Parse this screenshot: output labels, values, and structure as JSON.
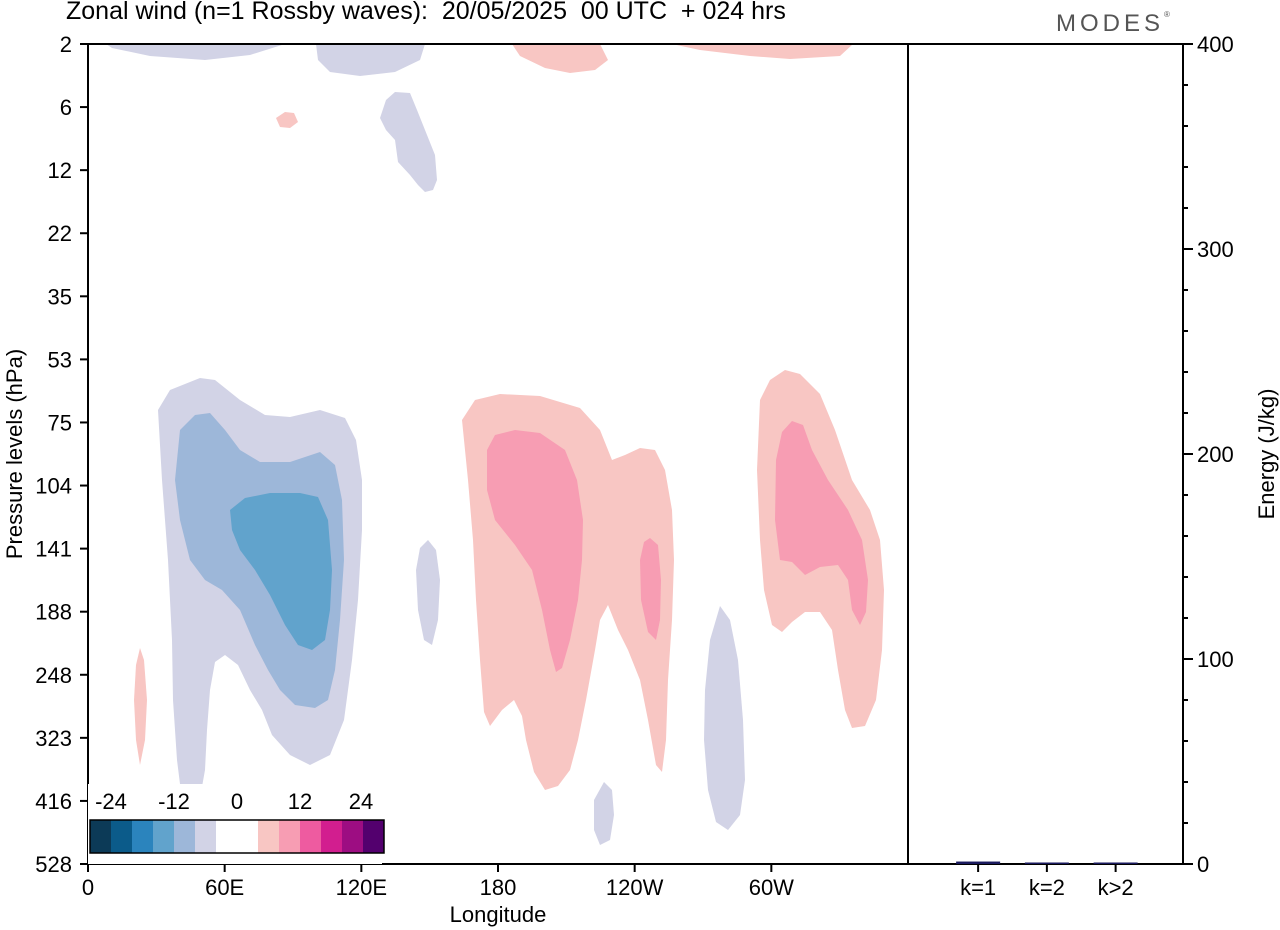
{
  "title": "Zonal wind (n=1 Rossby waves):  20/05/2025  00 UTC  + 024 hrs",
  "brand": "MODES",
  "brand_mark": "®",
  "colors": {
    "neg": [
      "#0c3a57",
      "#0b5b8a",
      "#2b84bd",
      "#61a3cc",
      "#9db7d9",
      "#d2d3e6"
    ],
    "zero": "#ffffff",
    "pos": [
      "#f8c6c3",
      "#f79db3",
      "#ee5ba0",
      "#d21e8f",
      "#9d0d82",
      "#53006e"
    ]
  },
  "chart_data": [
    {
      "type": "heatmap",
      "xlabel": "Longitude",
      "ylabel": "Pressure levels (hPa)",
      "x_ticks": [
        "0",
        "60E",
        "120E",
        "180",
        "120W",
        "60W"
      ],
      "x_tick_degrees": [
        0,
        60,
        120,
        180,
        240,
        300
      ],
      "xlim": [
        0,
        360
      ],
      "y_ticks": [
        "2",
        "6",
        "12",
        "22",
        "35",
        "53",
        "75",
        "104",
        "141",
        "188",
        "248",
        "323",
        "416",
        "528"
      ],
      "colorbar": {
        "labels": [
          "-24",
          "-12",
          "0",
          "12",
          "24"
        ],
        "levels": [
          -24,
          -12,
          0,
          12,
          24
        ]
      },
      "regions": [
        {
          "sign": "neg",
          "level": 1,
          "lon": [
            6,
            104
          ],
          "level_range": [
            "2",
            "2"
          ]
        },
        {
          "sign": "neg",
          "level": 1,
          "lon": [
            100,
            142
          ],
          "level_range": [
            "2",
            "12"
          ]
        },
        {
          "sign": "neg",
          "level": 1,
          "lon": [
            30,
            120
          ],
          "level_range": [
            "53",
            "416"
          ]
        },
        {
          "sign": "neg",
          "level": 2,
          "lon": [
            38,
            108
          ],
          "level_range": [
            "75",
            "323"
          ]
        },
        {
          "sign": "neg",
          "level": 3,
          "lon": [
            60,
            105
          ],
          "level_range": [
            "104",
            "248"
          ]
        },
        {
          "sign": "neg",
          "level": 1,
          "lon": [
            143,
            153
          ],
          "level_range": [
            "141",
            "248"
          ]
        },
        {
          "sign": "neg",
          "level": 1,
          "lon": [
            262,
            278
          ],
          "level_range": [
            "188",
            "416"
          ]
        },
        {
          "sign": "neg",
          "level": 1,
          "lon": [
            222,
            231
          ],
          "level_range": [
            "416",
            "528"
          ]
        },
        {
          "sign": "pos",
          "level": 1,
          "lon": [
            17,
            21
          ],
          "level_range": [
            "248",
            "323"
          ]
        },
        {
          "sign": "pos",
          "level": 1,
          "lon": [
            82,
            90
          ],
          "level_range": [
            "6",
            "12"
          ]
        },
        {
          "sign": "pos",
          "level": 1,
          "lon": [
            190,
            226
          ],
          "level_range": [
            "2",
            "2"
          ]
        },
        {
          "sign": "pos",
          "level": 1,
          "lon": [
            260,
            335
          ],
          "level_range": [
            "2",
            "2"
          ]
        },
        {
          "sign": "pos",
          "level": 1,
          "lon": [
            163,
            255
          ],
          "level_range": [
            "75",
            "416"
          ]
        },
        {
          "sign": "pos",
          "level": 2,
          "lon": [
            175,
            216
          ],
          "level_range": [
            "75",
            "248"
          ]
        },
        {
          "sign": "pos",
          "level": 2,
          "lon": [
            245,
            252
          ],
          "level_range": [
            "141",
            "188"
          ]
        },
        {
          "sign": "pos",
          "level": 1,
          "lon": [
            292,
            350
          ],
          "level_range": [
            "53",
            "323"
          ]
        },
        {
          "sign": "pos",
          "level": 2,
          "lon": [
            302,
            335
          ],
          "level_range": [
            "75",
            "188"
          ]
        }
      ]
    },
    {
      "type": "bar",
      "ylabel": "Energy (J/kg)",
      "categories": [
        "k=1",
        "k=2",
        "k>2"
      ],
      "values": [
        1.2,
        0.3,
        0.5
      ],
      "ylim": [
        0,
        400
      ],
      "y_ticks": [
        "0",
        "100",
        "200",
        "300",
        "400"
      ],
      "bar_color": "#1a1a5e"
    }
  ]
}
